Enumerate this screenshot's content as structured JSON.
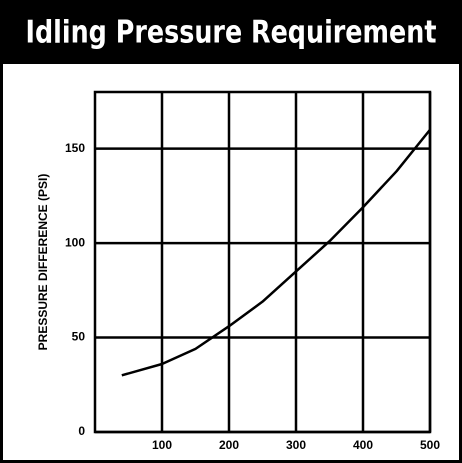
{
  "chart_data": {
    "type": "line",
    "title": "Idling Pressure Requirement",
    "ylabel": "PRESSURE DIFFERENCE (PSI)",
    "x": [
      40,
      100,
      150,
      200,
      250,
      300,
      350,
      400,
      450,
      500
    ],
    "values": [
      30,
      36,
      44,
      56,
      69,
      85,
      101,
      119,
      138,
      160
    ],
    "color": "#000000",
    "xlim": [
      0,
      500
    ],
    "xticks": [
      100,
      200,
      300,
      400,
      500
    ],
    "ylim": [
      0,
      180
    ],
    "yticks": [
      0,
      50,
      100,
      150
    ],
    "grid": true
  }
}
